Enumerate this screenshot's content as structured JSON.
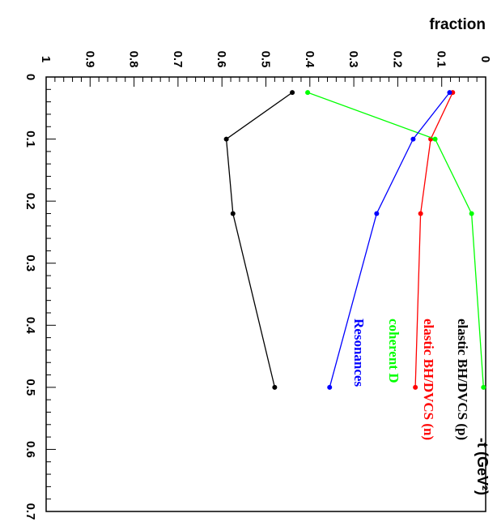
{
  "chart_data": {
    "type": "line",
    "orientation": "rotated-90-clockwise",
    "xlabel": "-t (GeV²)",
    "ylabel": "fraction",
    "xlim": [
      0,
      0.7
    ],
    "ylim": [
      0,
      1
    ],
    "x_ticks": [
      "0",
      "0.1",
      "0.2",
      "0.3",
      "0.4",
      "0.5",
      "0.6",
      "0.7"
    ],
    "y_ticks": [
      "0",
      "0.1",
      "0.2",
      "0.3",
      "0.4",
      "0.5",
      "0.6",
      "0.7",
      "0.8",
      "0.9",
      "1"
    ],
    "x": [
      0.025,
      0.1,
      0.22,
      0.5
    ],
    "series": [
      {
        "name": "elastic BH/DVCS (p)",
        "color": "#000000",
        "values": [
          0.44,
          0.59,
          0.575,
          0.48
        ]
      },
      {
        "name": "elastic BH/DVCS (n)",
        "color": "#ff0000",
        "values": [
          0.075,
          0.125,
          0.148,
          0.16
        ]
      },
      {
        "name": "coherent D",
        "color": "#00ff00",
        "values": [
          0.405,
          0.115,
          0.032,
          0.005
        ]
      },
      {
        "name": "Resonances",
        "color": "#0000ff",
        "values": [
          0.082,
          0.165,
          0.248,
          0.355
        ]
      }
    ],
    "legend_position": "right"
  }
}
